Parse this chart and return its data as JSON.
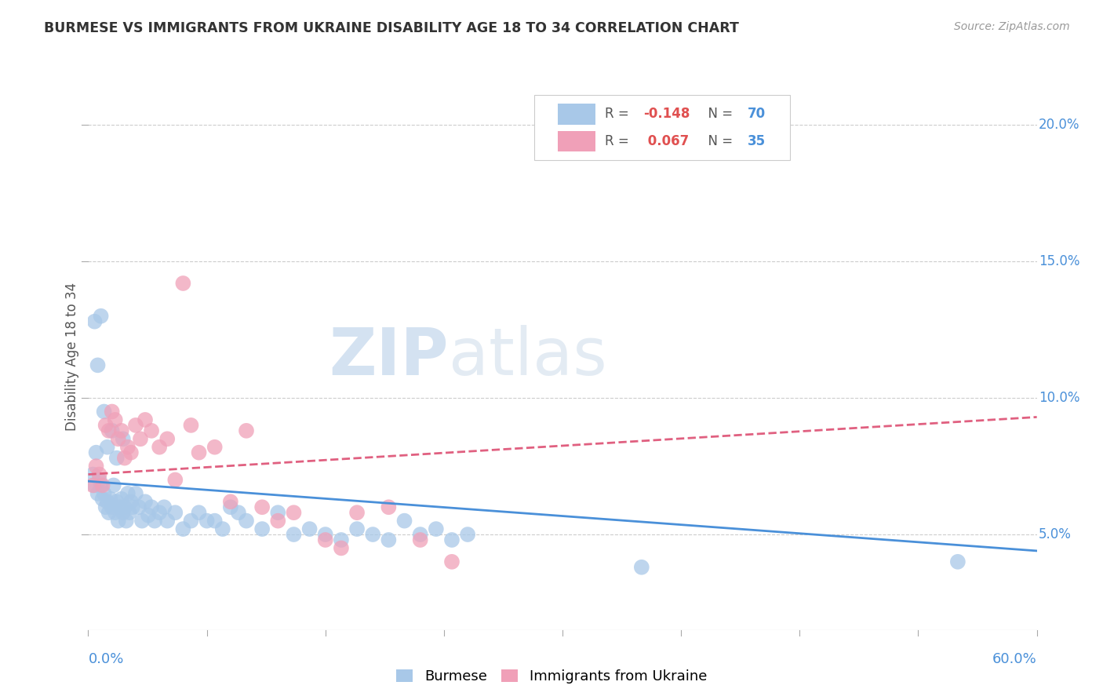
{
  "title": "BURMESE VS IMMIGRANTS FROM UKRAINE DISABILITY AGE 18 TO 34 CORRELATION CHART",
  "source": "Source: ZipAtlas.com",
  "ylabel": "Disability Age 18 to 34",
  "ytick_labels": [
    "5.0%",
    "10.0%",
    "15.0%",
    "20.0%"
  ],
  "ytick_values": [
    0.05,
    0.1,
    0.15,
    0.2
  ],
  "xlim": [
    0.0,
    0.6
  ],
  "ylim": [
    0.015,
    0.215
  ],
  "burmese_color": "#a8c8e8",
  "ukraine_color": "#f0a0b8",
  "burmese_line_color": "#4a90d9",
  "ukraine_line_color": "#e06080",
  "burmese_R": -0.148,
  "ukraine_R": 0.067,
  "watermark_zip": "ZIP",
  "watermark_atlas": "atlas",
  "burmese_x": [
    0.003,
    0.004,
    0.005,
    0.006,
    0.007,
    0.008,
    0.009,
    0.01,
    0.011,
    0.012,
    0.013,
    0.014,
    0.015,
    0.016,
    0.017,
    0.018,
    0.019,
    0.02,
    0.021,
    0.022,
    0.023,
    0.024,
    0.025,
    0.026,
    0.027,
    0.028,
    0.03,
    0.032,
    0.034,
    0.036,
    0.038,
    0.04,
    0.042,
    0.045,
    0.048,
    0.05,
    0.055,
    0.06,
    0.065,
    0.07,
    0.075,
    0.08,
    0.085,
    0.09,
    0.095,
    0.1,
    0.11,
    0.12,
    0.13,
    0.14,
    0.15,
    0.16,
    0.17,
    0.18,
    0.19,
    0.2,
    0.21,
    0.22,
    0.23,
    0.24,
    0.004,
    0.006,
    0.008,
    0.01,
    0.012,
    0.015,
    0.018,
    0.022,
    0.35,
    0.55
  ],
  "burmese_y": [
    0.072,
    0.068,
    0.08,
    0.065,
    0.07,
    0.068,
    0.063,
    0.065,
    0.06,
    0.062,
    0.058,
    0.063,
    0.06,
    0.068,
    0.058,
    0.062,
    0.055,
    0.06,
    0.063,
    0.058,
    0.06,
    0.055,
    0.065,
    0.058,
    0.062,
    0.06,
    0.065,
    0.06,
    0.055,
    0.062,
    0.057,
    0.06,
    0.055,
    0.058,
    0.06,
    0.055,
    0.058,
    0.052,
    0.055,
    0.058,
    0.055,
    0.055,
    0.052,
    0.06,
    0.058,
    0.055,
    0.052,
    0.058,
    0.05,
    0.052,
    0.05,
    0.048,
    0.052,
    0.05,
    0.048,
    0.055,
    0.05,
    0.052,
    0.048,
    0.05,
    0.128,
    0.112,
    0.13,
    0.095,
    0.082,
    0.088,
    0.078,
    0.085,
    0.038,
    0.04
  ],
  "ukraine_x": [
    0.003,
    0.005,
    0.007,
    0.009,
    0.011,
    0.013,
    0.015,
    0.017,
    0.019,
    0.021,
    0.023,
    0.025,
    0.027,
    0.03,
    0.033,
    0.036,
    0.04,
    0.045,
    0.05,
    0.055,
    0.06,
    0.065,
    0.07,
    0.08,
    0.09,
    0.1,
    0.11,
    0.12,
    0.13,
    0.15,
    0.16,
    0.17,
    0.19,
    0.21,
    0.23
  ],
  "ukraine_y": [
    0.068,
    0.075,
    0.072,
    0.068,
    0.09,
    0.088,
    0.095,
    0.092,
    0.085,
    0.088,
    0.078,
    0.082,
    0.08,
    0.09,
    0.085,
    0.092,
    0.088,
    0.082,
    0.085,
    0.07,
    0.142,
    0.09,
    0.08,
    0.082,
    0.062,
    0.088,
    0.06,
    0.055,
    0.058,
    0.048,
    0.045,
    0.058,
    0.06,
    0.048,
    0.04
  ],
  "burmese_trend_x": [
    0.0,
    0.6
  ],
  "burmese_trend_y": [
    0.0695,
    0.044
  ],
  "ukraine_trend_x": [
    0.0,
    0.6
  ],
  "ukraine_trend_y": [
    0.072,
    0.093
  ]
}
